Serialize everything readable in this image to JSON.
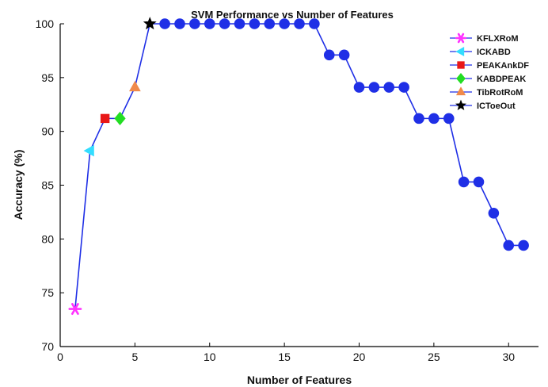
{
  "chart_data": {
    "type": "line",
    "title": "SVM Performance vs Number of Features",
    "xlabel": "Number of Features",
    "ylabel": "Accuracy (%)",
    "xlim": [
      0,
      32
    ],
    "ylim": [
      70,
      100
    ],
    "xticks": [
      0,
      5,
      10,
      15,
      20,
      25,
      30
    ],
    "yticks": [
      70,
      75,
      80,
      85,
      90,
      95,
      100
    ],
    "grid": false,
    "legend_position": "top-right",
    "line_color": "#1f2fe6",
    "series": [
      {
        "name": "Accuracy",
        "x": [
          1,
          2,
          3,
          4,
          5,
          6,
          7,
          8,
          9,
          10,
          11,
          12,
          13,
          14,
          15,
          16,
          17,
          18,
          19,
          20,
          21,
          22,
          23,
          24,
          25,
          26,
          27,
          28,
          29,
          30,
          31
        ],
        "y": [
          73.5,
          88.2,
          91.2,
          91.2,
          94.1,
          100,
          100,
          100,
          100,
          100,
          100,
          100,
          100,
          100,
          100,
          100,
          100,
          97.1,
          97.1,
          94.1,
          94.1,
          94.1,
          94.1,
          91.2,
          91.2,
          91.2,
          85.3,
          85.3,
          82.4,
          79.4,
          79.4
        ],
        "marker_color": "#1f2fe6"
      }
    ],
    "highlighted_points": [
      {
        "name": "KFLXRoM",
        "x": 1,
        "y": 73.5,
        "marker": "asterisk",
        "color": "#ff33ff"
      },
      {
        "name": "ICKABD",
        "x": 2,
        "y": 88.2,
        "marker": "triangle-left",
        "color": "#33ddff"
      },
      {
        "name": "PEAKAnkDF",
        "x": 3,
        "y": 91.2,
        "marker": "square",
        "color": "#e81818"
      },
      {
        "name": "KABDPEAK",
        "x": 4,
        "y": 91.2,
        "marker": "diamond",
        "color": "#22dd22"
      },
      {
        "name": "TibRotRoM",
        "x": 5,
        "y": 94.1,
        "marker": "triangle-up",
        "color": "#f08a4b"
      },
      {
        "name": "ICToeOut",
        "x": 6,
        "y": 100,
        "marker": "star",
        "color": "#000000"
      }
    ]
  }
}
